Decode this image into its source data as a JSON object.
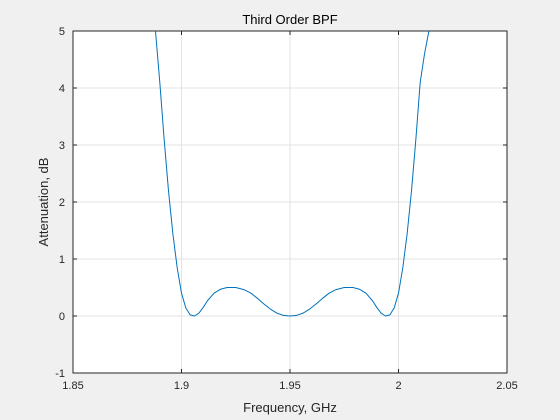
{
  "chart_data": {
    "type": "line",
    "title": "Third Order BPF",
    "xlabel": "Frequency, GHz",
    "ylabel": "Attenuation, dB",
    "xlim": [
      1.85,
      2.05
    ],
    "ylim": [
      -1,
      5
    ],
    "xticks": [
      1.85,
      1.9,
      1.95,
      2.0,
      2.05
    ],
    "xtick_labels": [
      "1.85",
      "1.9",
      "1.95",
      "2",
      "2.05"
    ],
    "yticks": [
      -1,
      0,
      1,
      2,
      3,
      4,
      5
    ],
    "ytick_labels": [
      "-1",
      "0",
      "1",
      "2",
      "3",
      "4",
      "5"
    ],
    "grid": true,
    "legend": "none",
    "colors": {
      "line": "#0072bd",
      "axes_bg": "#ffffff",
      "figure_bg": "#f0f0f0",
      "grid": "#e3e3e3",
      "axis": "#262626"
    },
    "series": [
      {
        "x": [
          1.888,
          1.89,
          1.892,
          1.894,
          1.896,
          1.898,
          1.9,
          1.902,
          1.904,
          1.906,
          1.908,
          1.91,
          1.912,
          1.915,
          1.918,
          1.921,
          1.925,
          1.929,
          1.932,
          1.935,
          1.938,
          1.941,
          1.944,
          1.947,
          1.95,
          1.953,
          1.956,
          1.959,
          1.962,
          1.965,
          1.968,
          1.971,
          1.975,
          1.979,
          1.982,
          1.985,
          1.988,
          1.99,
          1.992,
          1.994,
          1.996,
          1.998,
          2.0,
          2.002,
          2.004,
          2.006,
          2.008,
          2.01,
          2.012,
          2.014
        ],
        "values": [
          5.0,
          4.1,
          3.1,
          2.2,
          1.45,
          0.85,
          0.4,
          0.14,
          0.02,
          0.0,
          0.05,
          0.15,
          0.27,
          0.4,
          0.47,
          0.5,
          0.5,
          0.46,
          0.4,
          0.31,
          0.21,
          0.12,
          0.05,
          0.01,
          0.0,
          0.01,
          0.05,
          0.12,
          0.21,
          0.31,
          0.4,
          0.46,
          0.5,
          0.5,
          0.47,
          0.4,
          0.27,
          0.15,
          0.05,
          0.0,
          0.02,
          0.14,
          0.4,
          0.85,
          1.45,
          2.2,
          3.1,
          4.1,
          4.6,
          5.0
        ]
      }
    ]
  }
}
